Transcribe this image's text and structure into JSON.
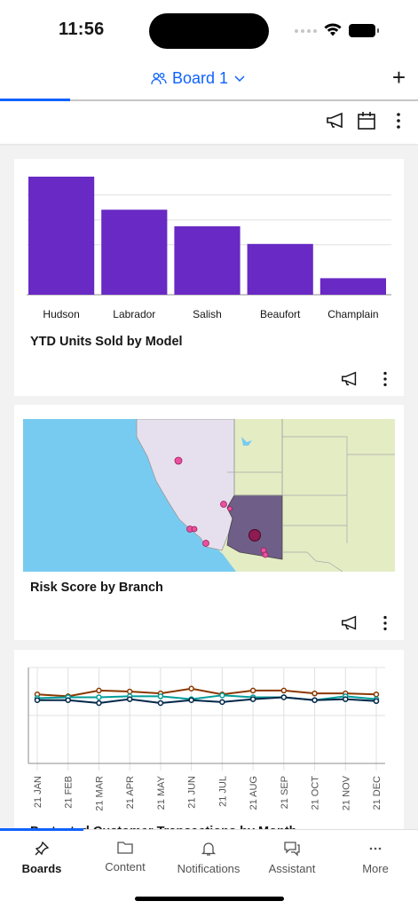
{
  "status": {
    "time": "11:56"
  },
  "header": {
    "board_name": "Board 1",
    "add_symbol": "+"
  },
  "toolbar": {
    "icons": [
      "megaphone-icon",
      "calendar-icon",
      "overflow-menu-icon"
    ]
  },
  "cards": {
    "units": {
      "title": "YTD Units Sold by Model"
    },
    "risk": {
      "title": "Risk Score by Branch"
    },
    "transactions": {
      "title": "Protected Customer Transactions by Month"
    }
  },
  "chart_data": [
    {
      "type": "bar",
      "title": "YTD Units Sold by Model",
      "categories": [
        "Hudson",
        "Labrador",
        "Salish",
        "Beaufort",
        "Champlain"
      ],
      "values": [
        100,
        72,
        58,
        43,
        14
      ],
      "ylim": [
        0,
        100
      ],
      "grid": true,
      "color": "#6929c4"
    },
    {
      "type": "line",
      "title": "Protected Customer Transactions by Month",
      "categories": [
        "21 JAN",
        "21 FEB",
        "21 MAR",
        "21 APR",
        "21 MAY",
        "21 JUN",
        "21 JUL",
        "21 AUG",
        "21 SEP",
        "21 OCT",
        "21 NOV",
        "21 DEC"
      ],
      "series": [
        {
          "color": "#8a3800",
          "values": [
            72,
            70,
            76,
            75,
            73,
            78,
            72,
            76,
            76,
            73,
            73,
            72
          ]
        },
        {
          "color": "#009d9a",
          "values": [
            68,
            69,
            69,
            70,
            70,
            67,
            71,
            69,
            69,
            66,
            70,
            67
          ]
        },
        {
          "color": "#012749",
          "values": [
            66,
            66,
            63,
            67,
            63,
            66,
            64,
            67,
            69,
            66,
            67,
            65
          ]
        }
      ],
      "ylim": [
        0,
        100
      ],
      "grid": true
    }
  ],
  "nav": {
    "items": [
      {
        "label": "Boards",
        "icon": "pin-icon",
        "active": true
      },
      {
        "label": "Content",
        "icon": "folder-icon",
        "active": false
      },
      {
        "label": "Notifications",
        "icon": "bell-icon",
        "active": false
      },
      {
        "label": "Assistant",
        "icon": "chat-icon",
        "active": false
      },
      {
        "label": "More",
        "icon": "more-icon",
        "active": false
      }
    ]
  }
}
